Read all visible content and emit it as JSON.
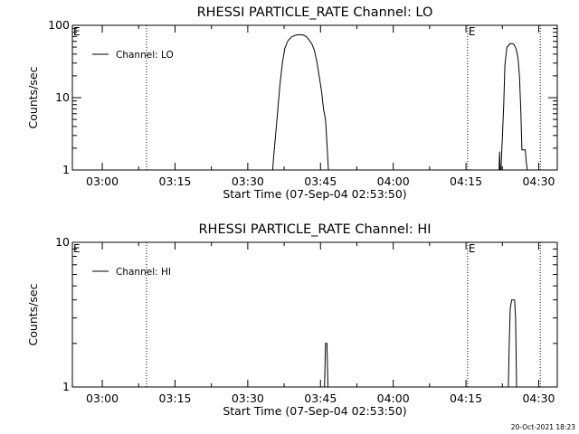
{
  "footer": "20-Oct-2021 18:23",
  "chart_data": [
    {
      "type": "line",
      "title": "RHESSI PARTICLE_RATE Channel: LO",
      "xlabel": "Start Time (07-Sep-04 02:53:50)",
      "ylabel": "Counts/sec",
      "x_unit": "minutes after 02:53:50",
      "xlim": [
        0,
        100
      ],
      "ylim": [
        1,
        100
      ],
      "yscale": "log",
      "grid": false,
      "legend_position": "top-left",
      "x_ticks": [
        {
          "x": 6.17,
          "label": "03:00"
        },
        {
          "x": 21.17,
          "label": "03:15"
        },
        {
          "x": 36.17,
          "label": "03:30"
        },
        {
          "x": 51.17,
          "label": "03:45"
        },
        {
          "x": 66.17,
          "label": "04:00"
        },
        {
          "x": 81.17,
          "label": "04:15"
        },
        {
          "x": 96.17,
          "label": "04:30"
        }
      ],
      "y_ticks": [
        {
          "y": 1,
          "label": "1"
        },
        {
          "y": 10,
          "label": "10"
        },
        {
          "y": 100,
          "label": "100"
        }
      ],
      "markers": [
        {
          "x": 0,
          "label": "E"
        },
        {
          "x": 81.5,
          "label": "E"
        }
      ],
      "vlines": [
        15.3,
        81.5,
        96.5
      ],
      "series": [
        {
          "name": "Channel: LO",
          "segments": [
            [
              [
                41.3,
                1
              ],
              [
                41.5,
                1.5
              ],
              [
                41.9,
                3
              ],
              [
                42.3,
                6
              ],
              [
                42.8,
                15
              ],
              [
                43.3,
                30
              ],
              [
                43.8,
                48
              ],
              [
                44.5,
                62
              ],
              [
                45.3,
                70
              ],
              [
                46.3,
                74
              ],
              [
                47.5,
                74
              ],
              [
                48.2,
                70
              ],
              [
                48.8,
                63
              ],
              [
                49.4,
                55
              ],
              [
                49.9,
                45
              ],
              [
                50.4,
                32
              ],
              [
                50.9,
                20
              ],
              [
                51.4,
                12
              ],
              [
                51.8,
                7
              ],
              [
                52.2,
                5
              ],
              [
                52.4,
                3
              ],
              [
                52.6,
                1.8
              ],
              [
                52.8,
                1
              ]
            ],
            [
              [
                88.0,
                1
              ],
              [
                88.1,
                1.8
              ],
              [
                88.2,
                1
              ],
              [
                88.4,
                1
              ],
              [
                88.55,
                1.8
              ],
              [
                88.7,
                3
              ],
              [
                88.95,
                8
              ],
              [
                89.2,
                28
              ],
              [
                89.6,
                50
              ],
              [
                90.3,
                56
              ],
              [
                91.0,
                55
              ],
              [
                91.5,
                48
              ],
              [
                91.9,
                35
              ],
              [
                92.2,
                20
              ],
              [
                92.5,
                6
              ],
              [
                92.7,
                1.9
              ],
              [
                93.4,
                1.9
              ],
              [
                93.6,
                1.3
              ],
              [
                93.8,
                1
              ]
            ]
          ]
        }
      ]
    },
    {
      "type": "line",
      "title": "RHESSI PARTICLE_RATE Channel: HI",
      "xlabel": "Start Time (07-Sep-04 02:53:50)",
      "ylabel": "Counts/sec",
      "x_unit": "minutes after 02:53:50",
      "xlim": [
        0,
        100
      ],
      "ylim": [
        1,
        10
      ],
      "yscale": "log",
      "grid": false,
      "legend_position": "top-left",
      "x_ticks": [
        {
          "x": 6.17,
          "label": "03:00"
        },
        {
          "x": 21.17,
          "label": "03:15"
        },
        {
          "x": 36.17,
          "label": "03:30"
        },
        {
          "x": 51.17,
          "label": "03:45"
        },
        {
          "x": 66.17,
          "label": "04:00"
        },
        {
          "x": 81.17,
          "label": "04:15"
        },
        {
          "x": 96.17,
          "label": "04:30"
        }
      ],
      "y_ticks": [
        {
          "y": 1,
          "label": "1"
        },
        {
          "y": 10,
          "label": "10"
        }
      ],
      "markers": [
        {
          "x": 0,
          "label": "E"
        },
        {
          "x": 81.5,
          "label": "E"
        }
      ],
      "vlines": [
        15.3,
        81.5,
        96.5
      ],
      "series": [
        {
          "name": "Channel: HI",
          "segments": [
            [
              [
                52.0,
                1
              ],
              [
                52.2,
                2
              ],
              [
                52.5,
                2
              ],
              [
                52.7,
                1
              ]
            ],
            [
              [
                89.9,
                1
              ],
              [
                90.1,
                2
              ],
              [
                90.3,
                3.5
              ],
              [
                90.6,
                4
              ],
              [
                91.2,
                4
              ],
              [
                91.4,
                3
              ],
              [
                91.6,
                1
              ]
            ]
          ]
        }
      ]
    }
  ]
}
